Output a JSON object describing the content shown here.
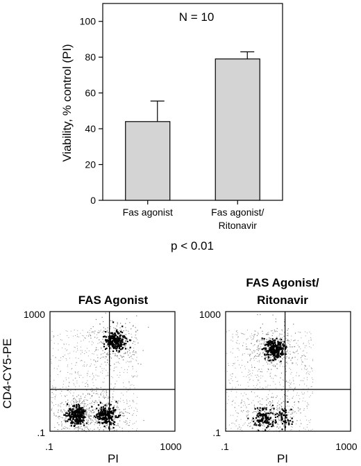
{
  "chart_data": [
    {
      "type": "bar",
      "ylabel": "Viability, % control (PI)",
      "annotation": "N = 10",
      "caption": "p < 0.01",
      "ylim": [
        0,
        110
      ],
      "yticks": [
        "0",
        "20",
        "40",
        "60",
        "80",
        "100"
      ],
      "categories": [
        [
          "Fas agonist"
        ],
        [
          "Fas agonist/",
          "Ritonavir"
        ]
      ],
      "values": [
        44,
        79
      ],
      "error_plus": [
        11.5,
        4
      ],
      "bar_color": "#d4d4d4"
    },
    {
      "type": "scatter",
      "title": "FAS Agonist",
      "xlabel": "PI",
      "ylabel": "CD4-CY5-PE",
      "xscale": "log",
      "yscale": "log",
      "xlim": [
        0.1,
        1000
      ],
      "ylim": [
        0.1,
        1000
      ],
      "x_tick_labels": [
        ".1",
        "1000"
      ],
      "y_tick_labels": [
        ".1",
        "1000"
      ],
      "quadrant_gates": {
        "x": 8,
        "y": 2.5
      },
      "populations": [
        {
          "x": 12,
          "y": 110,
          "relative_density": 0.8
        },
        {
          "x": 0.7,
          "y": 0.35,
          "relative_density": 1.0
        },
        {
          "x": 6,
          "y": 0.35,
          "relative_density": 0.85
        }
      ]
    },
    {
      "type": "scatter",
      "title_lines": [
        "FAS Agonist/",
        "Ritonavir"
      ],
      "xlabel": "PI",
      "ylabel": "",
      "xscale": "log",
      "yscale": "log",
      "xlim": [
        0.1,
        1000
      ],
      "ylim": [
        0.1,
        1000
      ],
      "x_tick_labels": [
        ".1",
        "1000"
      ],
      "y_tick_labels": [
        ".1",
        "1000"
      ],
      "quadrant_gates": {
        "x": 8,
        "y": 2.5
      },
      "populations": [
        {
          "x": 3.5,
          "y": 60,
          "relative_density": 1.0
        },
        {
          "x": 1.5,
          "y": 0.3,
          "relative_density": 0.45
        },
        {
          "x": 6,
          "y": 0.3,
          "relative_density": 0.25
        }
      ]
    }
  ]
}
